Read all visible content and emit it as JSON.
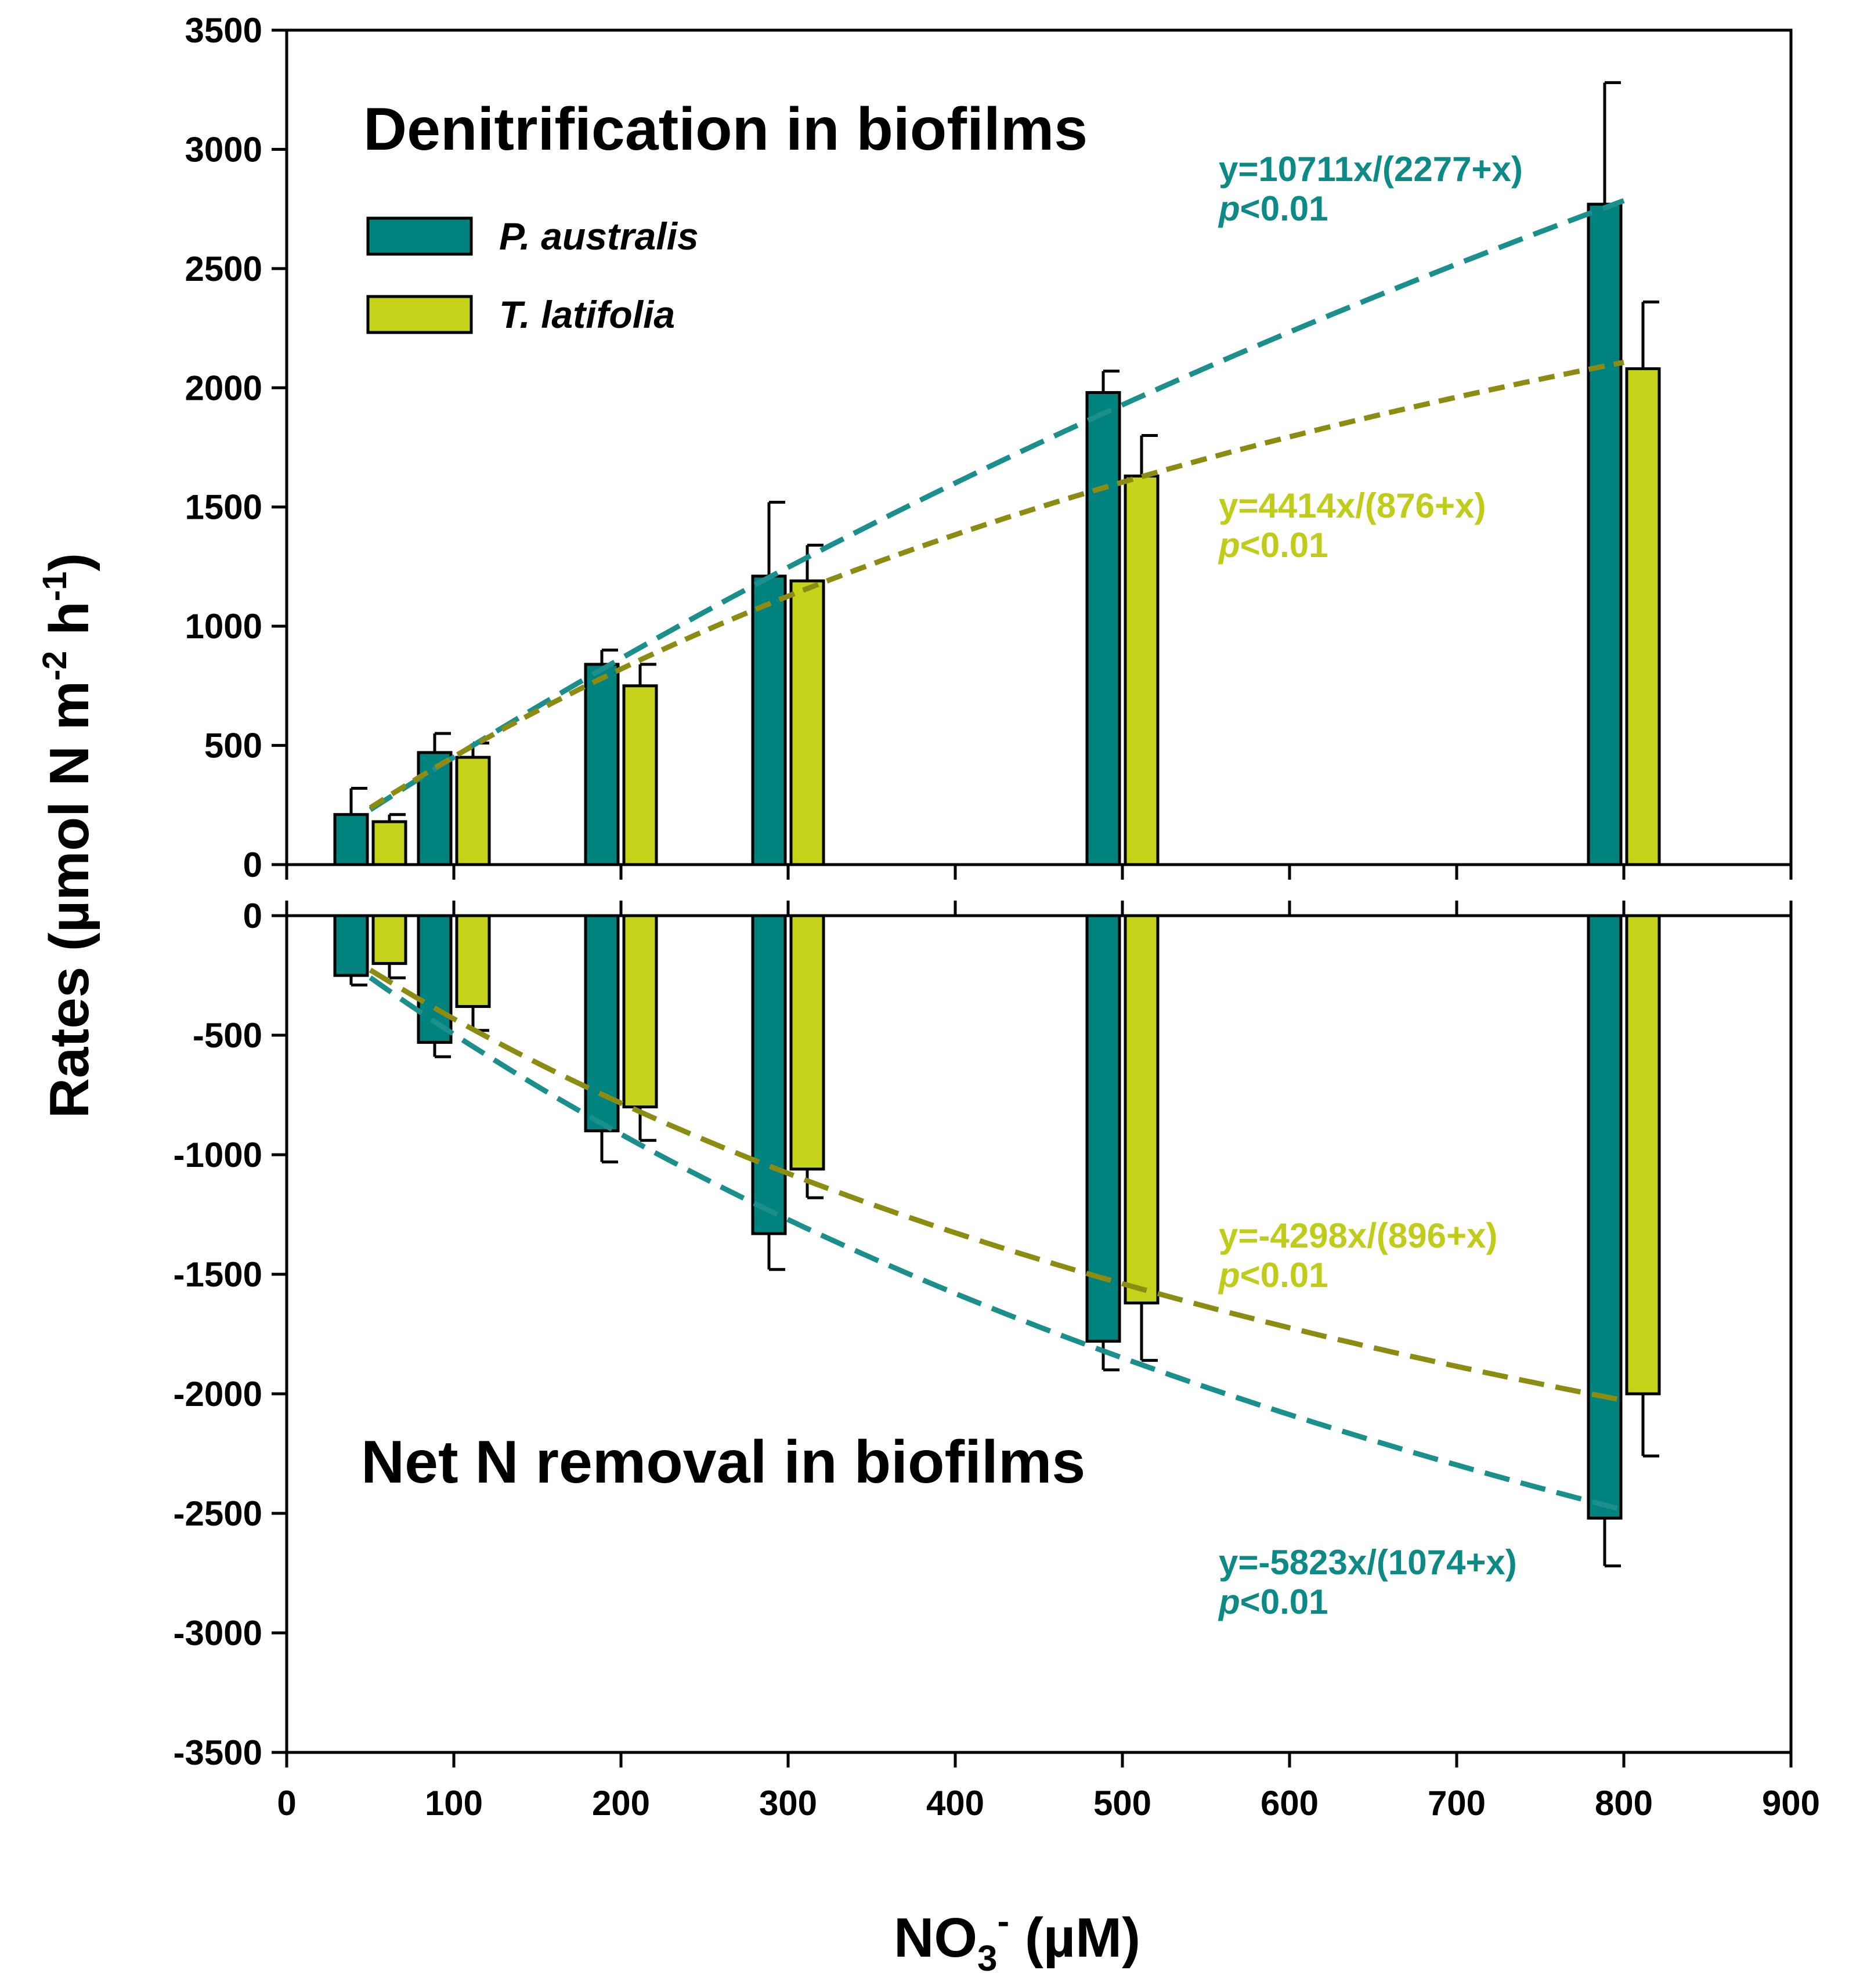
{
  "chart_data": [
    {
      "type": "bar",
      "panel": "top",
      "title": "Denitrification in biofilms",
      "xlabel": "NO3- (µM)",
      "ylabel": "Rates (µmol N m-2 h-1)",
      "xlim": [
        0,
        900
      ],
      "ylim": [
        0,
        3500
      ],
      "xticks": [
        0,
        100,
        200,
        300,
        400,
        500,
        600,
        700,
        800,
        900
      ],
      "yticks": [
        0,
        500,
        1000,
        1500,
        2000,
        2500,
        3000,
        3500
      ],
      "x": [
        50,
        100,
        200,
        300,
        500,
        800
      ],
      "series": [
        {
          "name": "P. australis",
          "color": "#00827f",
          "values": [
            210,
            470,
            840,
            1210,
            1980,
            2770
          ],
          "errors": [
            110,
            80,
            60,
            310,
            90,
            510
          ]
        },
        {
          "name": "T. latifolia",
          "color": "#c5d31a",
          "values": [
            180,
            450,
            750,
            1190,
            1630,
            2080
          ],
          "errors": [
            30,
            60,
            90,
            150,
            170,
            280
          ]
        }
      ],
      "fits": [
        {
          "series": "P. australis",
          "Vmax": 10711,
          "Km": 2277,
          "color": "#1a8f8c",
          "equation": "y=10711x/(2277+x)",
          "p_prefix": "p",
          "p_value": "<0.01",
          "label_color": "#0e8a86"
        },
        {
          "series": "T. latifolia",
          "Vmax": 4414,
          "Km": 876,
          "color": "#8c8c12",
          "equation": "y=4414x/(876+x)",
          "p_prefix": "p",
          "p_value": "<0.01",
          "label_color": "#bfcc1a"
        }
      ]
    },
    {
      "type": "bar",
      "panel": "bottom",
      "title": "Net N removal in biofilms",
      "xlabel": "NO3- (µM)",
      "ylabel": "Rates (µmol N m-2 h-1)",
      "xlim": [
        0,
        900
      ],
      "ylim": [
        -3500,
        0
      ],
      "xticks": [
        0,
        100,
        200,
        300,
        400,
        500,
        600,
        700,
        800,
        900
      ],
      "yticks": [
        0,
        -500,
        -1000,
        -1500,
        -2000,
        -2500,
        -3000,
        -3500
      ],
      "x": [
        50,
        100,
        200,
        300,
        500,
        800
      ],
      "series": [
        {
          "name": "P. australis",
          "color": "#00827f",
          "values": [
            -250,
            -530,
            -900,
            -1330,
            -1780,
            -2520
          ],
          "errors": [
            40,
            60,
            130,
            150,
            120,
            200
          ]
        },
        {
          "name": "T. latifolia",
          "color": "#c5d31a",
          "values": [
            -200,
            -380,
            -800,
            -1060,
            -1620,
            -2000
          ],
          "errors": [
            60,
            100,
            140,
            120,
            240,
            260
          ]
        }
      ],
      "fits": [
        {
          "series": "P. australis",
          "Vmax": -5823,
          "Km": 1074,
          "color": "#1a8f8c",
          "equation": "y=-5823x/(1074+x)",
          "p_prefix": "p",
          "p_value": "<0.01",
          "label_color": "#0e8a86"
        },
        {
          "series": "T. latifolia",
          "Vmax": -4298,
          "Km": 896,
          "color": "#8c8c12",
          "equation": "y=-4298x/(896+x)",
          "p_prefix": "p",
          "p_value": "<0.01",
          "label_color": "#bfcc1a"
        }
      ]
    }
  ],
  "legend": {
    "items": [
      {
        "label": "P. australis",
        "color": "#00827f"
      },
      {
        "label": "T. latifolia",
        "color": "#c5d31a"
      }
    ]
  },
  "axis_titles": {
    "y_main": "Rates (µmol N m",
    "y_exp1": "-2",
    "y_mid": " h",
    "y_exp2": "-1",
    "y_end": ")",
    "x_main": "NO",
    "x_sub": "3",
    "x_sup": "-",
    "x_end": " (µM)"
  }
}
